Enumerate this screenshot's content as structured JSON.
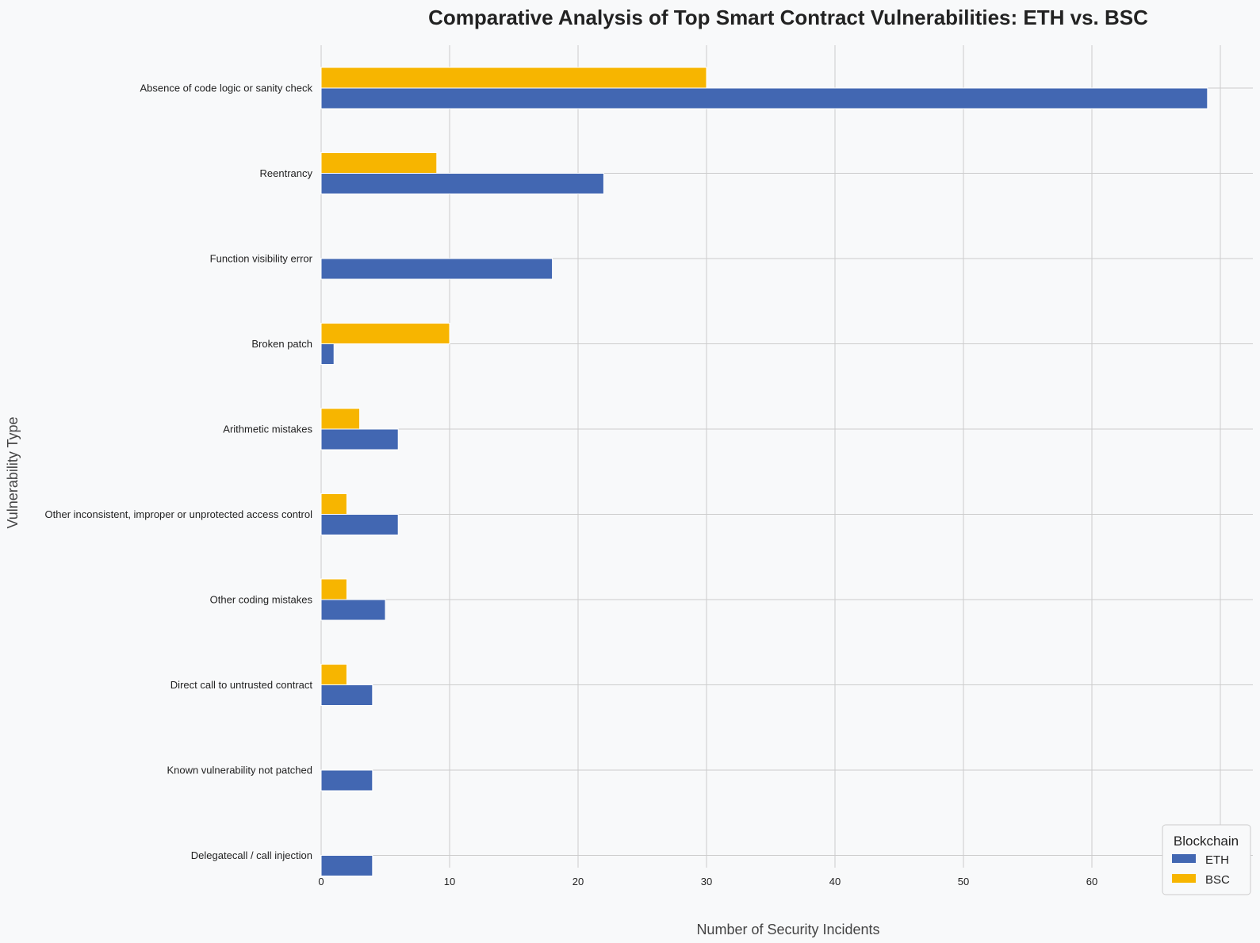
{
  "colors": {
    "background": "#f8f9fa",
    "grid": "#cccccc",
    "ETH": "#4267b2",
    "BSC": "#f7b500"
  },
  "chart_data": {
    "type": "bar",
    "orientation": "horizontal",
    "title": "Comparative Analysis of Top Smart Contract Vulnerabilities: ETH vs. BSC",
    "xlabel": "Number of Security Incidents",
    "ylabel": "Vulnerability Type",
    "xlim": [
      0,
      72.5
    ],
    "xticks": [
      0,
      10,
      20,
      30,
      40,
      50,
      60,
      70
    ],
    "grid": true,
    "categories": [
      "Absence of code logic or sanity check",
      "Reentrancy",
      "Function visibility error",
      "Broken patch",
      "Arithmetic mistakes",
      "Other inconsistent, improper or unprotected access control",
      "Other coding mistakes",
      "Direct call to untrusted contract",
      "Known vulnerability not patched",
      "Delegatecall / call injection"
    ],
    "series": [
      {
        "name": "ETH",
        "values": [
          69,
          22,
          18,
          1,
          6,
          6,
          5,
          4,
          4,
          4
        ]
      },
      {
        "name": "BSC",
        "values": [
          30,
          9,
          0,
          10,
          3,
          2,
          2,
          2,
          0,
          0
        ]
      }
    ],
    "legend": {
      "title": "Blockchain",
      "position": "bottom-right",
      "entries": [
        "ETH",
        "BSC"
      ]
    }
  }
}
